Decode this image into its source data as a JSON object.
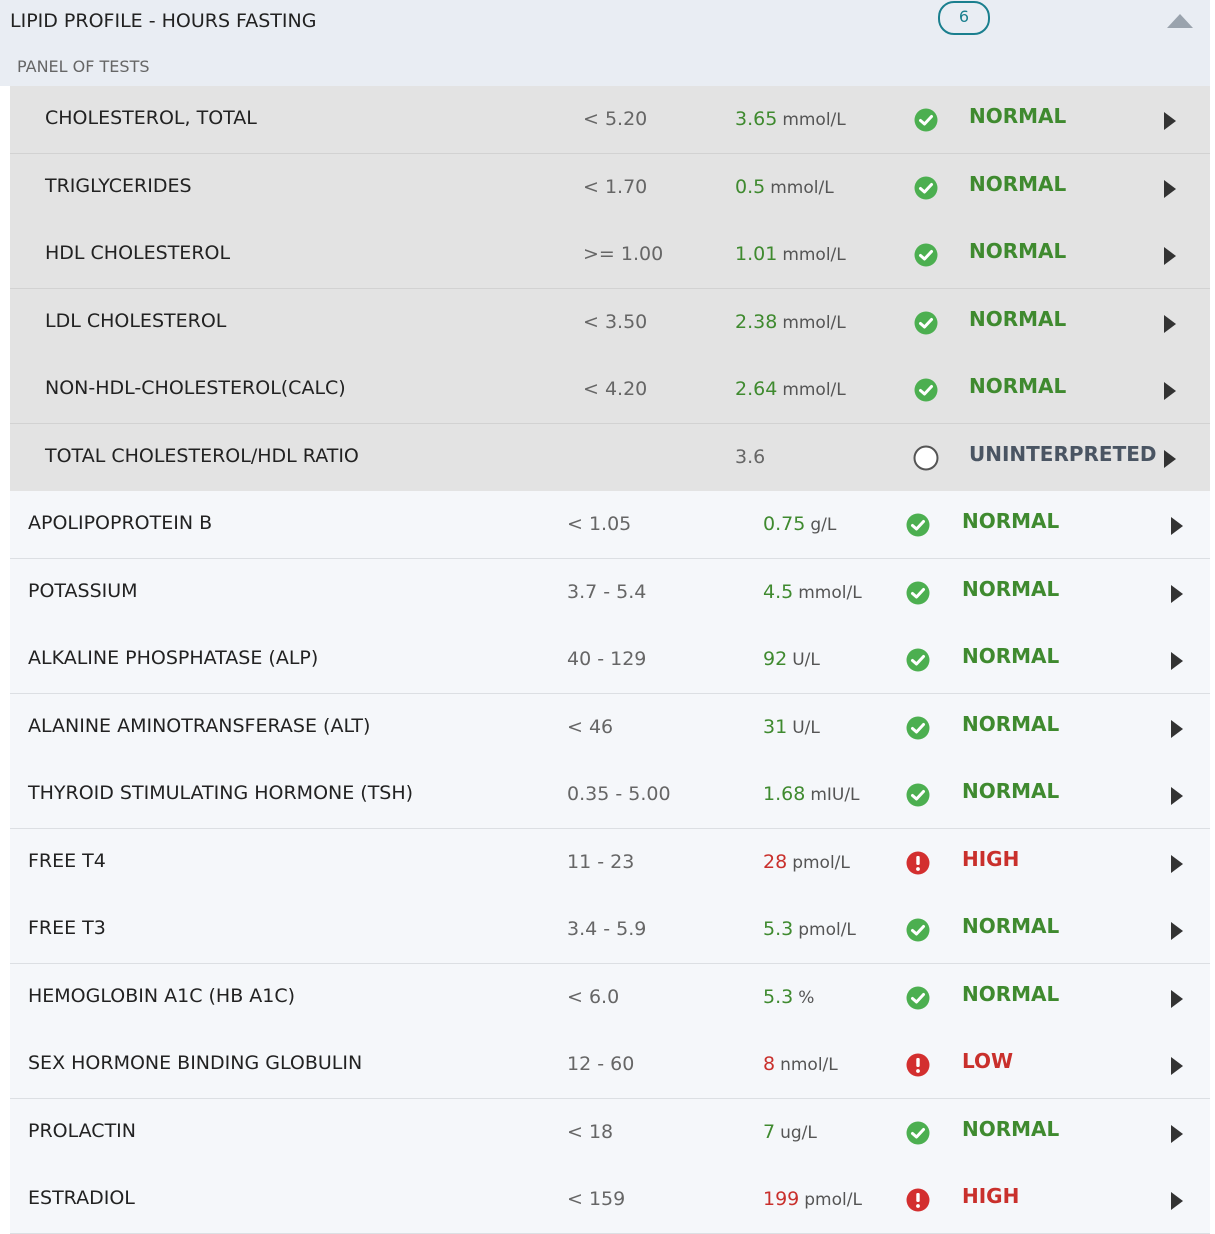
{
  "header": {
    "title": "LIPID PROFILE - HOURS FASTING",
    "count": "6",
    "subtitle": "PANEL OF TESTS"
  },
  "panel": {
    "rows": [
      {
        "name": "CHOLESTEROL, TOTAL",
        "range": "< 5.20",
        "value": "3.65",
        "unit": "mmol/L",
        "status": "NORMAL"
      },
      {
        "name": "TRIGLYCERIDES",
        "range": "< 1.70",
        "value": "0.5",
        "unit": "mmol/L",
        "status": "NORMAL"
      },
      {
        "name": "HDL CHOLESTEROL",
        "range": ">= 1.00",
        "value": "1.01",
        "unit": "mmol/L",
        "status": "NORMAL"
      },
      {
        "name": "LDL CHOLESTEROL",
        "range": "< 3.50",
        "value": "2.38",
        "unit": "mmol/L",
        "status": "NORMAL"
      },
      {
        "name": "NON-HDL-CHOLESTEROL(CALC)",
        "range": "< 4.20",
        "value": "2.64",
        "unit": "mmol/L",
        "status": "NORMAL"
      },
      {
        "name": "TOTAL CHOLESTEROL/HDL RATIO",
        "value": "3.6",
        "status": "UNINTERPRETED"
      }
    ]
  },
  "tests": {
    "rows": [
      {
        "name": "APOLIPOPROTEIN B",
        "range": "< 1.05",
        "value": "0.75",
        "unit": "g/L",
        "status": "NORMAL"
      },
      {
        "name": "POTASSIUM",
        "range": "3.7 - 5.4",
        "value": "4.5",
        "unit": "mmol/L",
        "status": "NORMAL"
      },
      {
        "name": "ALKALINE PHOSPHATASE (ALP)",
        "range": "40 - 129",
        "value": "92",
        "unit": "U/L",
        "status": "NORMAL"
      },
      {
        "name": "ALANINE AMINOTRANSFERASE (ALT)",
        "range": "< 46",
        "value": "31",
        "unit": "U/L",
        "status": "NORMAL"
      },
      {
        "name": "THYROID STIMULATING HORMONE (TSH)",
        "range": "0.35 - 5.00",
        "value": "1.68",
        "unit": "mIU/L",
        "status": "NORMAL"
      },
      {
        "name": "FREE T4",
        "range": "11 - 23",
        "value": "28",
        "unit": "pmol/L",
        "status": "HIGH"
      },
      {
        "name": "FREE T3",
        "range": "3.4 - 5.9",
        "value": "5.3",
        "unit": "pmol/L",
        "status": "NORMAL"
      },
      {
        "name": "HEMOGLOBIN A1C (HB A1C)",
        "range": "< 6.0",
        "value": "5.3",
        "unit": "%",
        "status": "NORMAL"
      },
      {
        "name": "SEX HORMONE BINDING GLOBULIN",
        "range": "12 - 60",
        "value": "8",
        "unit": "nmol/L",
        "status": "LOW"
      },
      {
        "name": "PROLACTIN",
        "range": "< 18",
        "value": "7",
        "unit": "ug/L",
        "status": "NORMAL"
      },
      {
        "name": "ESTRADIOL",
        "range": "< 159",
        "value": "199",
        "unit": "pmol/L",
        "status": "HIGH"
      }
    ]
  }
}
